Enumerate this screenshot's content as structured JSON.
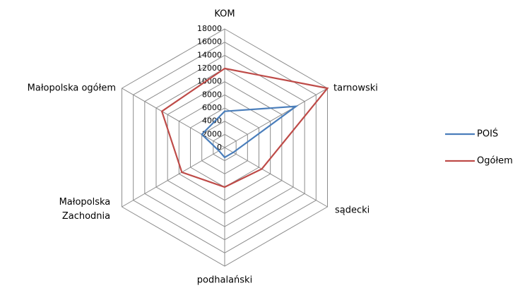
{
  "chart_data": {
    "type": "radar",
    "categories": [
      "KOM",
      "tarnowski",
      "sądecki",
      "podhalański",
      "Małopolska Zachodnia",
      "Małopolska ogółem"
    ],
    "series": [
      {
        "name": "POIŚ",
        "color": "#4a7ebb",
        "values": [
          5500,
          12500,
          1500,
          1500,
          1000,
          4000
        ]
      },
      {
        "name": "Ogółem",
        "color": "#be4b48",
        "values": [
          12000,
          18000,
          6500,
          6000,
          7500,
          11000
        ]
      }
    ],
    "ylim": [
      0,
      18000
    ],
    "yticks": [
      0,
      2000,
      4000,
      6000,
      8000,
      10000,
      12000,
      14000,
      16000,
      18000
    ],
    "grid": true,
    "legend": "right"
  }
}
